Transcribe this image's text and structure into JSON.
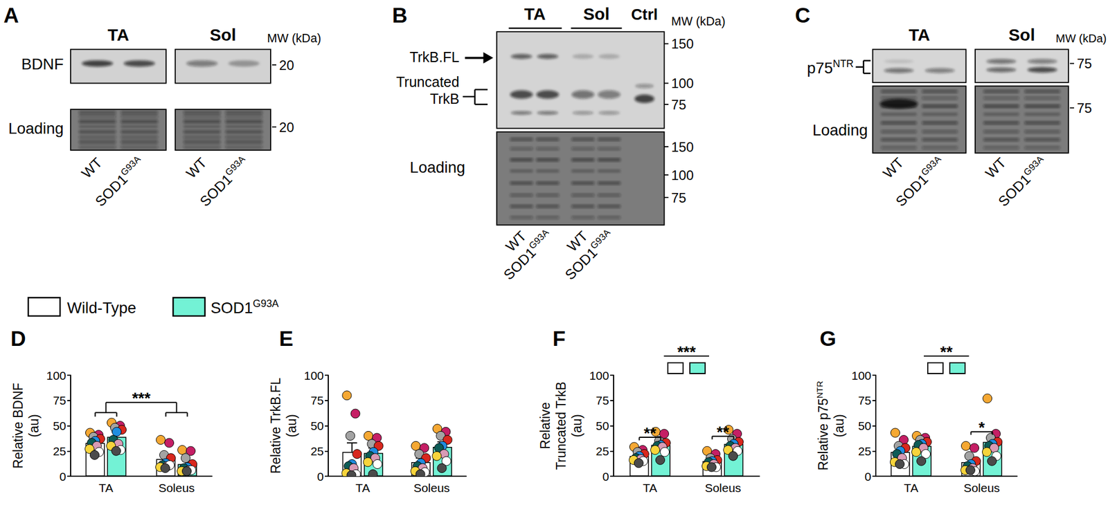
{
  "figure": {
    "A": {
      "label": "A",
      "groups": [
        "TA",
        "Sol"
      ],
      "rows": [
        "BDNF",
        "Loading"
      ],
      "mw_title": "MW (kDa)",
      "mw": [
        [
          20
        ],
        [
          20
        ]
      ],
      "lanes": [
        {
          "text": "WT"
        },
        {
          "text": "SOD1",
          "sup": "G93A"
        }
      ]
    },
    "B": {
      "label": "B",
      "groups": [
        "TA",
        "Sol",
        "Ctrl"
      ],
      "bands": [
        [
          "TrkB.FL"
        ],
        [
          "Truncated",
          "TrkB"
        ]
      ],
      "loading": "Loading",
      "mw_title": "MW (kDa)",
      "mw": [
        [
          150,
          100,
          75
        ],
        [
          150,
          100,
          75
        ]
      ],
      "lanes": [
        {
          "text": "WT"
        },
        {
          "text": "SOD1",
          "sup": "G93A"
        }
      ]
    },
    "C": {
      "label": "C",
      "groups": [
        "TA",
        "Sol"
      ],
      "band": {
        "text": "p75",
        "sup": "NTR"
      },
      "loading": "Loading",
      "mw_title": "MW (kDa)",
      "mw": [
        [
          75
        ],
        [
          75
        ]
      ],
      "lanes": [
        {
          "text": "WT"
        },
        {
          "text": "SOD1",
          "sup": "G93A"
        }
      ]
    }
  },
  "chart_data": [
    {
      "type": "bar",
      "label": "D",
      "y_label": [
        [
          {
            "text": "Relative BDNF"
          }
        ],
        [
          {
            "text": "(au)"
          }
        ]
      ],
      "categories": [
        "TA",
        "Soleus"
      ],
      "ylim": [
        0,
        100
      ],
      "yticks": [
        0,
        25,
        50,
        75,
        100
      ],
      "grid": false,
      "point_colors": [
        "#f5a833",
        "#c51f65",
        "#a3a3a3",
        "#d8281e",
        "#1f8de0",
        "#0d5c57",
        "#d99bb5",
        "#f7d43c",
        "#ffffff",
        "#4b4b4b"
      ],
      "series": [
        {
          "name": "Wild-Type",
          "color": "#ffffff",
          "values": [
            33,
            17
          ],
          "errors": [
            3,
            4
          ],
          "points": [
            [
              43,
              41,
              39,
              37,
              35,
              33,
              30,
              27,
              24,
              21
            ],
            [
              36,
              33,
              21,
              18,
              13,
              11,
              10,
              9,
              11,
              8
            ]
          ]
        },
        {
          "name": "SOD1",
          "name_sup": "G93A",
          "color": "#73f2d5",
          "values": [
            39,
            12
          ],
          "errors": [
            5,
            3
          ],
          "points": [
            [
              53,
              50,
              48,
              46,
              44,
              36,
              32,
              30,
              26,
              25
            ],
            [
              26,
              25,
              18,
              12,
              9,
              8,
              6,
              5,
              6,
              5
            ]
          ]
        }
      ],
      "annotations": [
        {
          "kind": "between_categories",
          "text": "***"
        }
      ]
    },
    {
      "type": "bar",
      "label": "E",
      "y_label": [
        [
          {
            "text": "Relative TrkB.FL"
          }
        ],
        [
          {
            "text": "(au)"
          }
        ]
      ],
      "categories": [
        "TA",
        "Soleus"
      ],
      "ylim": [
        0,
        100
      ],
      "yticks": [
        0,
        25,
        50,
        75,
        100
      ],
      "grid": false,
      "point_colors": [
        "#f5a833",
        "#c51f65",
        "#a3a3a3",
        "#d8281e",
        "#1f8de0",
        "#0d5c57",
        "#d99bb5",
        "#f7d43c",
        "#ffffff",
        "#4b4b4b"
      ],
      "series": [
        {
          "name": "Wild-Type",
          "color": "#ffffff",
          "values": [
            24,
            14
          ],
          "errors": [
            9,
            4
          ],
          "points": [
            [
              80,
              62,
              40,
              22,
              12,
              10,
              8,
              3,
              2,
              1
            ],
            [
              30,
              28,
              22,
              18,
              13,
              10,
              8,
              5,
              4,
              2
            ]
          ]
        },
        {
          "name": "SOD1",
          "name_sup": "G93A",
          "color": "#73f2d5",
          "values": [
            23,
            29
          ],
          "errors": [
            5,
            5
          ],
          "points": [
            [
              40,
              38,
              32,
              30,
              24,
              20,
              18,
              14,
              12,
              2
            ],
            [
              47,
              44,
              40,
              36,
              30,
              28,
              22,
              20,
              15,
              8
            ]
          ]
        }
      ]
    },
    {
      "type": "bar",
      "label": "F",
      "y_label": [
        [
          {
            "text": "Relative"
          }
        ],
        [
          {
            "text": "Truncated TrkB"
          }
        ],
        [
          {
            "text": "(au)"
          }
        ]
      ],
      "categories": [
        "TA",
        "Soleus"
      ],
      "ylim": [
        0,
        100
      ],
      "yticks": [
        0,
        25,
        50,
        75,
        100
      ],
      "grid": false,
      "point_colors": [
        "#f5a833",
        "#c51f65",
        "#a3a3a3",
        "#d8281e",
        "#1f8de0",
        "#0d5c57",
        "#d99bb5",
        "#f7d43c",
        "#ffffff",
        "#4b4b4b"
      ],
      "series": [
        {
          "name": "Wild-Type",
          "color": "#ffffff",
          "values": [
            20,
            15
          ],
          "errors": [
            2.5,
            2
          ],
          "points": [
            [
              29,
              26,
              24,
              22,
              20,
              18,
              17,
              16,
              15,
              13
            ],
            [
              25,
              22,
              18,
              16,
              15,
              14,
              12,
              10,
              9,
              9
            ]
          ]
        },
        {
          "name": "SOD1",
          "name_sup": "G93A",
          "color": "#73f2d5",
          "values": [
            31,
            32
          ],
          "errors": [
            2.5,
            2.5
          ],
          "points": [
            [
              44,
              42,
              35,
              33,
              31,
              30,
              29,
              26,
              24,
              16
            ],
            [
              46,
              42,
              37,
              34,
              32,
              30,
              28,
              26,
              25,
              20
            ]
          ]
        }
      ],
      "annotations": [
        {
          "kind": "genotype",
          "text": "***"
        },
        {
          "kind": "pair",
          "category": 0,
          "text": "**"
        },
        {
          "kind": "pair",
          "category": 1,
          "text": "**"
        }
      ]
    },
    {
      "type": "bar",
      "label": "G",
      "y_label": [
        [
          {
            "text": "Relative p75"
          },
          {
            "text": "NTR",
            "sup": true
          }
        ],
        [
          {
            "text": "(au)"
          }
        ]
      ],
      "categories": [
        "TA",
        "Soleus"
      ],
      "ylim": [
        0,
        100
      ],
      "yticks": [
        0,
        25,
        50,
        75,
        100
      ],
      "grid": false,
      "point_colors": [
        "#f5a833",
        "#c51f65",
        "#a3a3a3",
        "#d8281e",
        "#1f8de0",
        "#0d5c57",
        "#d99bb5",
        "#f7d43c",
        "#ffffff",
        "#4b4b4b"
      ],
      "series": [
        {
          "name": "Wild-Type",
          "color": "#ffffff",
          "values": [
            24,
            14
          ],
          "errors": [
            4,
            4
          ],
          "points": [
            [
              43,
              36,
              30,
              28,
              25,
              22,
              18,
              14,
              12,
              12
            ],
            [
              30,
              28,
              20,
              15,
              12,
              10,
              8,
              6,
              5,
              6
            ]
          ]
        },
        {
          "name": "SOD1",
          "name_sup": "G93A",
          "color": "#73f2d5",
          "values": [
            30,
            34
          ],
          "errors": [
            3.5,
            5
          ],
          "points": [
            [
              40,
              38,
              36,
              34,
              32,
              31,
              28,
              24,
              22,
              15
            ],
            [
              77,
              42,
              38,
              34,
              32,
              30,
              28,
              24,
              20,
              15
            ]
          ]
        }
      ],
      "annotations": [
        {
          "kind": "genotype",
          "text": "**"
        },
        {
          "kind": "pair",
          "category": 1,
          "text": "*"
        }
      ]
    }
  ]
}
